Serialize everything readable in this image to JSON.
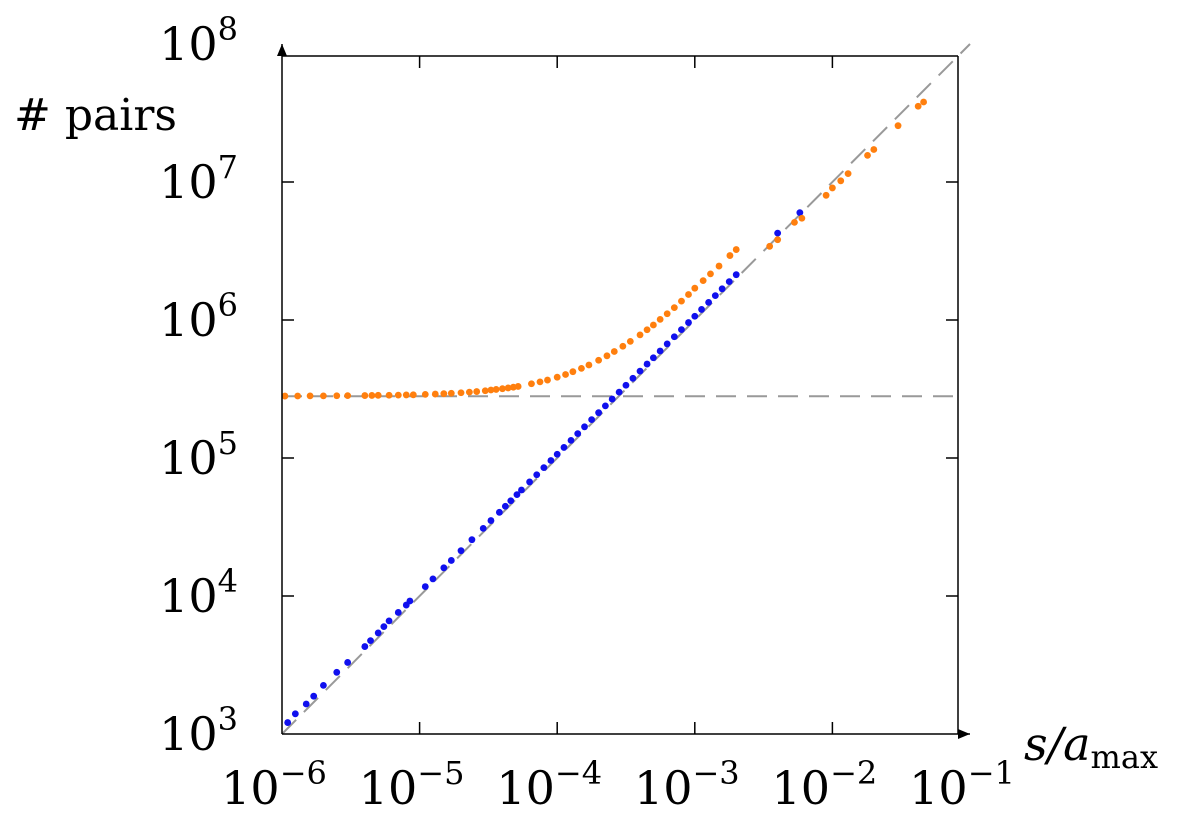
{
  "chart_data": {
    "type": "scatter",
    "xscale": "log",
    "yscale": "log",
    "xlim": [
      1e-06,
      0.1
    ],
    "ylim": [
      1000,
      100000000
    ],
    "ylabel": "# pairs",
    "xlabel_var": "s/a",
    "xlabel_sub": "max",
    "x_ticks": [
      {
        "base": "10",
        "exp": "−6"
      },
      {
        "base": "10",
        "exp": "−5"
      },
      {
        "base": "10",
        "exp": "−4"
      },
      {
        "base": "10",
        "exp": "−3"
      },
      {
        "base": "10",
        "exp": "−2"
      },
      {
        "base": "10",
        "exp": "−1"
      }
    ],
    "y_ticks": [
      {
        "base": "10",
        "exp": "3"
      },
      {
        "base": "10",
        "exp": "4"
      },
      {
        "base": "10",
        "exp": "5"
      },
      {
        "base": "10",
        "exp": "6"
      },
      {
        "base": "10",
        "exp": "7"
      },
      {
        "base": "10",
        "exp": "8"
      }
    ],
    "reference_lines": [
      {
        "kind": "power-law",
        "slope": 1,
        "x_range": [
          1e-06,
          0.1
        ],
        "y_range": [
          1000,
          100000000
        ],
        "color": "#999999",
        "dash": true
      },
      {
        "kind": "constant",
        "y": 280000,
        "x_range": [
          1e-06,
          0.1
        ],
        "color": "#999999",
        "dash": true
      }
    ],
    "series": [
      {
        "color": "#1010ee",
        "x": [
          1.1e-06,
          1.25e-06,
          1.5e-06,
          1.7e-06,
          2e-06,
          2.5e-06,
          3e-06,
          4e-06,
          4.4e-06,
          5e-06,
          5.5e-06,
          6e-06,
          7e-06,
          8e-06,
          8.5e-06,
          1.1e-05,
          1.25e-05,
          1.5e-05,
          1.7e-05,
          2e-05,
          2.4e-05,
          2.9e-05,
          3.3e-05,
          3.8e-05,
          4.2e-05,
          4.6e-05,
          5.1e-05,
          5.5e-05,
          6.3e-05,
          7.1e-05,
          8e-05,
          9e-05,
          0.0001,
          0.000112,
          0.000126,
          0.000141,
          0.000158,
          0.000178,
          0.0002,
          0.000224,
          0.000251,
          0.000282,
          0.000316,
          0.000355,
          0.0004,
          0.00045,
          0.0005,
          0.00056,
          0.00063,
          0.00071,
          0.0008,
          0.0009,
          0.001,
          0.00112,
          0.00126,
          0.00141,
          0.00158,
          0.00178,
          0.002,
          0.004,
          0.0058
        ],
        "y": [
          1210,
          1400,
          1650,
          1880,
          2250,
          2800,
          3300,
          4300,
          4750,
          5400,
          6000,
          6600,
          7600,
          8600,
          9200,
          11700,
          13300,
          16000,
          18100,
          21300,
          25600,
          30900,
          35200,
          40400,
          44700,
          49000,
          54300,
          58600,
          67100,
          75600,
          85200,
          95900,
          106500,
          119300,
          134200,
          150200,
          168300,
          189600,
          213000,
          238600,
          267300,
          300300,
          336500,
          378100,
          426000,
          479300,
          532500,
          596400,
          671000,
          756200,
          852000,
          958500,
          1065000,
          1193000,
          1342000,
          1502000,
          1683000,
          1896000,
          2130000,
          4260000,
          6000000
        ]
      },
      {
        "color": "#ff7f0e",
        "x": [
          1.05e-06,
          1.3e-06,
          1.6e-06,
          2e-06,
          2.5e-06,
          3e-06,
          4e-06,
          4.5e-06,
          5e-06,
          6e-06,
          7e-06,
          8e-06,
          9e-06,
          1.1e-05,
          1.3e-05,
          1.5e-05,
          1.7e-05,
          2e-05,
          2.3e-05,
          2.6e-05,
          3e-05,
          3.3e-05,
          3.6e-05,
          4e-05,
          4.4e-05,
          4.8e-05,
          5.2e-05,
          6.5e-05,
          7.5e-05,
          8.5e-05,
          0.0001,
          0.000115,
          0.00013,
          0.00015,
          0.00017,
          0.0002,
          0.00023,
          0.00026,
          0.0003,
          0.00034,
          0.0004,
          0.00045,
          0.0005,
          0.00056,
          0.00063,
          0.00071,
          0.0008,
          0.0009,
          0.001,
          0.00115,
          0.0013,
          0.0015,
          0.0018,
          0.002,
          0.0035,
          0.004,
          0.0053,
          0.006,
          0.009,
          0.01,
          0.0115,
          0.013,
          0.018,
          0.02,
          0.03,
          0.042,
          0.046
        ],
        "y": [
          281000,
          281500,
          282000,
          282000,
          282500,
          283000,
          283500,
          284000,
          284500,
          285000,
          285500,
          286500,
          287000,
          289000,
          290500,
          292500,
          294500,
          297000,
          300000,
          303000,
          307000,
          311000,
          314000,
          318000,
          322000,
          326000,
          330000,
          345000,
          356000,
          367000,
          385000,
          403000,
          422000,
          446000,
          472000,
          511000,
          550000,
          591000,
          645000,
          700000,
          780000,
          850000,
          920000,
          1010000,
          1110000,
          1230000,
          1370000,
          1530000,
          1700000,
          1930000,
          2160000,
          2460000,
          2930000,
          3240000,
          3420000,
          3820000,
          5100000,
          5460000,
          8010000,
          9060000,
          10200000,
          11500000,
          15600000,
          17200000,
          25600000,
          35400000,
          38000000
        ]
      }
    ]
  }
}
